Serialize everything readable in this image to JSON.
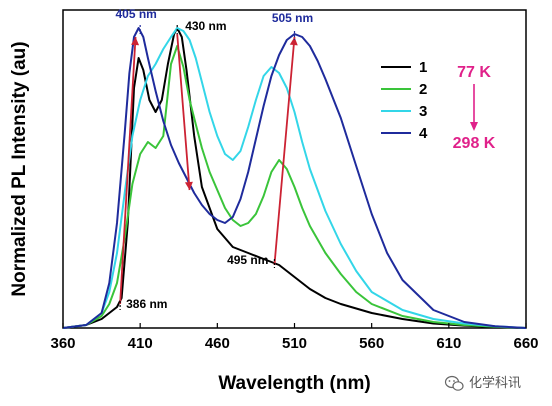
{
  "chart_data": {
    "type": "line",
    "xlabel": "Wavelength (nm)",
    "ylabel": "Normalized PL Intensity (au)",
    "xlim": [
      360,
      660
    ],
    "ylim": [
      0,
      1.06
    ],
    "xticks": [
      "360",
      "410",
      "460",
      "510",
      "560",
      "610",
      "660"
    ],
    "grid": false,
    "legend_position": "top-right",
    "series": [
      {
        "name": "1",
        "color": "#000000",
        "x": [
          360,
          375,
          385,
          390,
          395,
          398,
          402,
          406,
          409,
          412,
          416,
          420,
          424,
          428,
          432,
          434,
          437,
          440,
          445,
          450,
          460,
          470,
          480,
          490,
          495,
          500,
          510,
          520,
          530,
          540,
          560,
          580,
          600,
          620,
          640,
          660
        ],
        "y": [
          0.0,
          0.01,
          0.03,
          0.05,
          0.07,
          0.1,
          0.35,
          0.8,
          0.9,
          0.86,
          0.76,
          0.72,
          0.76,
          0.88,
          0.98,
          1.0,
          0.97,
          0.86,
          0.64,
          0.47,
          0.33,
          0.27,
          0.25,
          0.23,
          0.22,
          0.21,
          0.17,
          0.13,
          0.1,
          0.08,
          0.05,
          0.03,
          0.015,
          0.008,
          0.003,
          0.0
        ]
      },
      {
        "name": "2",
        "color": "#3ac43a",
        "x": [
          360,
          375,
          385,
          390,
          395,
          400,
          405,
          410,
          415,
          420,
          425,
          430,
          434,
          438,
          442,
          446,
          450,
          455,
          460,
          465,
          470,
          475,
          480,
          485,
          490,
          495,
          500,
          505,
          510,
          515,
          520,
          530,
          540,
          550,
          560,
          580,
          600,
          620,
          640,
          660
        ],
        "y": [
          0.0,
          0.01,
          0.04,
          0.08,
          0.15,
          0.3,
          0.48,
          0.58,
          0.62,
          0.6,
          0.64,
          0.88,
          0.94,
          0.87,
          0.76,
          0.68,
          0.6,
          0.52,
          0.46,
          0.4,
          0.36,
          0.34,
          0.35,
          0.38,
          0.44,
          0.52,
          0.56,
          0.53,
          0.47,
          0.4,
          0.34,
          0.25,
          0.18,
          0.12,
          0.08,
          0.04,
          0.02,
          0.01,
          0.004,
          0.0
        ]
      },
      {
        "name": "3",
        "color": "#33d6e8",
        "x": [
          360,
          375,
          385,
          390,
          395,
          400,
          405,
          410,
          415,
          420,
          425,
          430,
          434,
          438,
          442,
          446,
          450,
          455,
          460,
          465,
          470,
          475,
          480,
          485,
          490,
          495,
          500,
          505,
          510,
          515,
          520,
          530,
          540,
          550,
          560,
          580,
          600,
          620,
          640,
          660
        ],
        "y": [
          0.0,
          0.01,
          0.05,
          0.12,
          0.25,
          0.45,
          0.64,
          0.76,
          0.84,
          0.88,
          0.93,
          0.97,
          1.0,
          0.99,
          0.96,
          0.9,
          0.82,
          0.72,
          0.64,
          0.58,
          0.56,
          0.59,
          0.67,
          0.76,
          0.84,
          0.87,
          0.85,
          0.8,
          0.72,
          0.62,
          0.53,
          0.39,
          0.28,
          0.19,
          0.12,
          0.06,
          0.03,
          0.015,
          0.006,
          0.0
        ]
      },
      {
        "name": "4",
        "color": "#1f2b9c",
        "x": [
          360,
          375,
          385,
          390,
          395,
          400,
          403,
          406,
          409,
          412,
          415,
          420,
          425,
          430,
          435,
          440,
          445,
          450,
          455,
          460,
          465,
          470,
          475,
          480,
          485,
          490,
          495,
          500,
          505,
          510,
          515,
          520,
          525,
          530,
          540,
          550,
          560,
          570,
          580,
          600,
          620,
          640,
          660
        ],
        "y": [
          0.0,
          0.01,
          0.05,
          0.15,
          0.35,
          0.65,
          0.85,
          0.97,
          1.0,
          0.97,
          0.9,
          0.79,
          0.69,
          0.61,
          0.55,
          0.5,
          0.45,
          0.41,
          0.38,
          0.36,
          0.35,
          0.37,
          0.43,
          0.52,
          0.63,
          0.74,
          0.84,
          0.91,
          0.96,
          0.98,
          0.97,
          0.94,
          0.89,
          0.83,
          0.7,
          0.54,
          0.38,
          0.25,
          0.16,
          0.06,
          0.02,
          0.006,
          0.0
        ]
      }
    ],
    "annotations": [
      {
        "text": "405 nm",
        "x": 410,
        "y": 1.0,
        "color": "#1f2b9c"
      },
      {
        "text": "430 nm",
        "x": 434,
        "y": 1.0,
        "color": "#000000"
      },
      {
        "text": "505 nm",
        "x": 510,
        "y": 0.98,
        "color": "#1f2b9c"
      },
      {
        "text": "386 nm",
        "x": 397,
        "y": 0.08,
        "color": "#000000"
      },
      {
        "text": "495 nm",
        "x": 497,
        "y": 0.22,
        "color": "#000000"
      }
    ],
    "arrows": [
      {
        "from": [
          397,
          0.08
        ],
        "to": [
          407,
          0.97
        ],
        "color": "#cc2233"
      },
      {
        "from": [
          434,
          0.98
        ],
        "to": [
          442,
          0.46
        ],
        "color": "#cc2233"
      },
      {
        "from": [
          497,
          0.21
        ],
        "to": [
          510,
          0.97
        ],
        "color": "#cc2233"
      }
    ],
    "temperature_range": {
      "start": "77 K",
      "end": "298 K",
      "color": "#e0218a"
    }
  },
  "watermark": {
    "text": "化学科讯",
    "icon": "wechat-icon"
  }
}
